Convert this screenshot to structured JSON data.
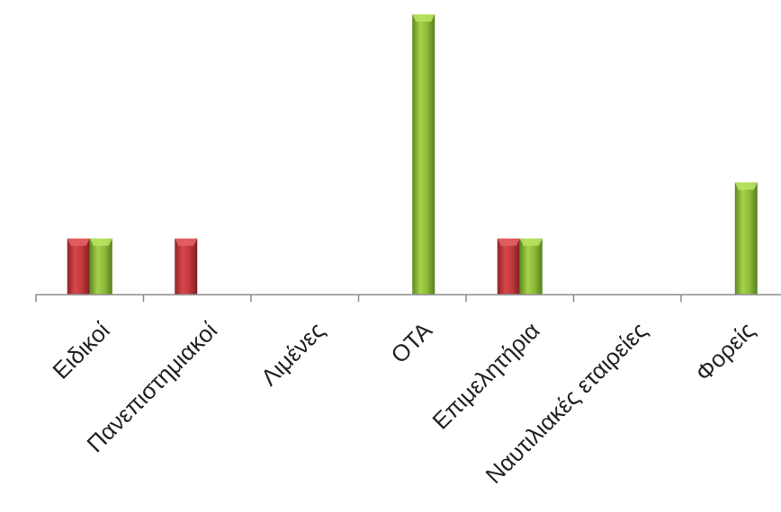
{
  "chart_data": {
    "type": "bar",
    "categories": [
      "Ειδικοί",
      "Πανεπιστημιακοί",
      "Λιμένες",
      "ΟΤΑ",
      "Επιμελητήρια",
      "Ναυτιλιακές εταιρείες",
      "Φορείς"
    ],
    "series": [
      {
        "color": "#c0393b",
        "values": [
          1,
          1,
          0,
          0,
          1,
          0,
          0
        ]
      },
      {
        "color": "#8dbb3a",
        "values": [
          1,
          0,
          0,
          5,
          1,
          0,
          2
        ]
      }
    ],
    "ylim": [
      0,
      5
    ],
    "grid": false,
    "legend": "none"
  }
}
